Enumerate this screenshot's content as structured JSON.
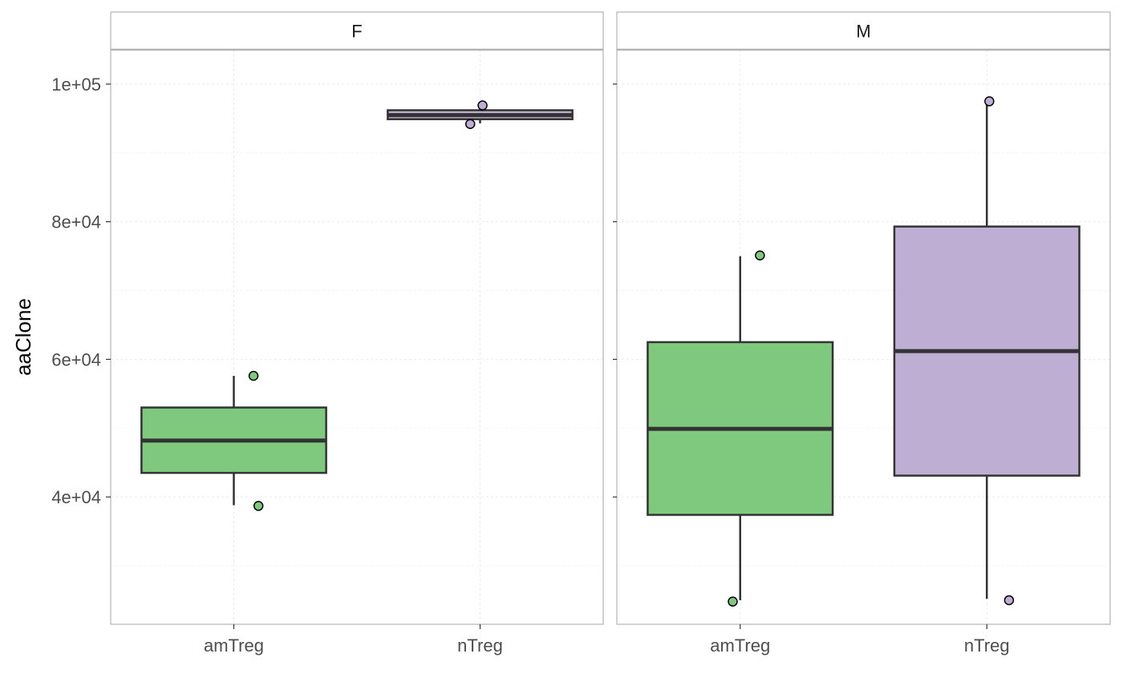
{
  "chart_data": {
    "type": "boxplot",
    "ylabel": "aaClone",
    "xlabel": "",
    "ylim": [
      21500,
      105000
    ],
    "y_ticks": [
      40000,
      60000,
      80000,
      100000
    ],
    "y_tick_labels": [
      "4e+04",
      "6e+04",
      "8e+04",
      "1e+05"
    ],
    "categories": [
      "amTreg",
      "nTreg"
    ],
    "grid": true,
    "colors": {
      "amTreg": "#7fc97f",
      "nTreg": "#beaed4"
    },
    "facets": [
      {
        "label": "F",
        "boxes": [
          {
            "category": "amTreg",
            "min": 38800,
            "q1": 43500,
            "median": 48200,
            "q3": 53000,
            "max": 57600,
            "points": [
              {
                "x_offset": 0.08,
                "value": 57600
              },
              {
                "x_offset": 0.1,
                "value": 38700
              }
            ]
          },
          {
            "category": "nTreg",
            "min": 94300,
            "q1": 94900,
            "median": 95500,
            "q3": 96200,
            "max": 96800,
            "points": [
              {
                "x_offset": 0.01,
                "value": 96900
              },
              {
                "x_offset": -0.04,
                "value": 94200
              }
            ]
          }
        ]
      },
      {
        "label": "M",
        "boxes": [
          {
            "category": "amTreg",
            "min": 25000,
            "q1": 37400,
            "median": 49900,
            "q3": 62500,
            "max": 75000,
            "points": [
              {
                "x_offset": 0.08,
                "value": 75100
              },
              {
                "x_offset": -0.03,
                "value": 24800
              }
            ]
          },
          {
            "category": "nTreg",
            "min": 25200,
            "q1": 43100,
            "median": 61200,
            "q3": 79300,
            "max": 97300,
            "points": [
              {
                "x_offset": 0.01,
                "value": 97500
              },
              {
                "x_offset": 0.09,
                "value": 25000
              }
            ]
          }
        ]
      }
    ]
  }
}
